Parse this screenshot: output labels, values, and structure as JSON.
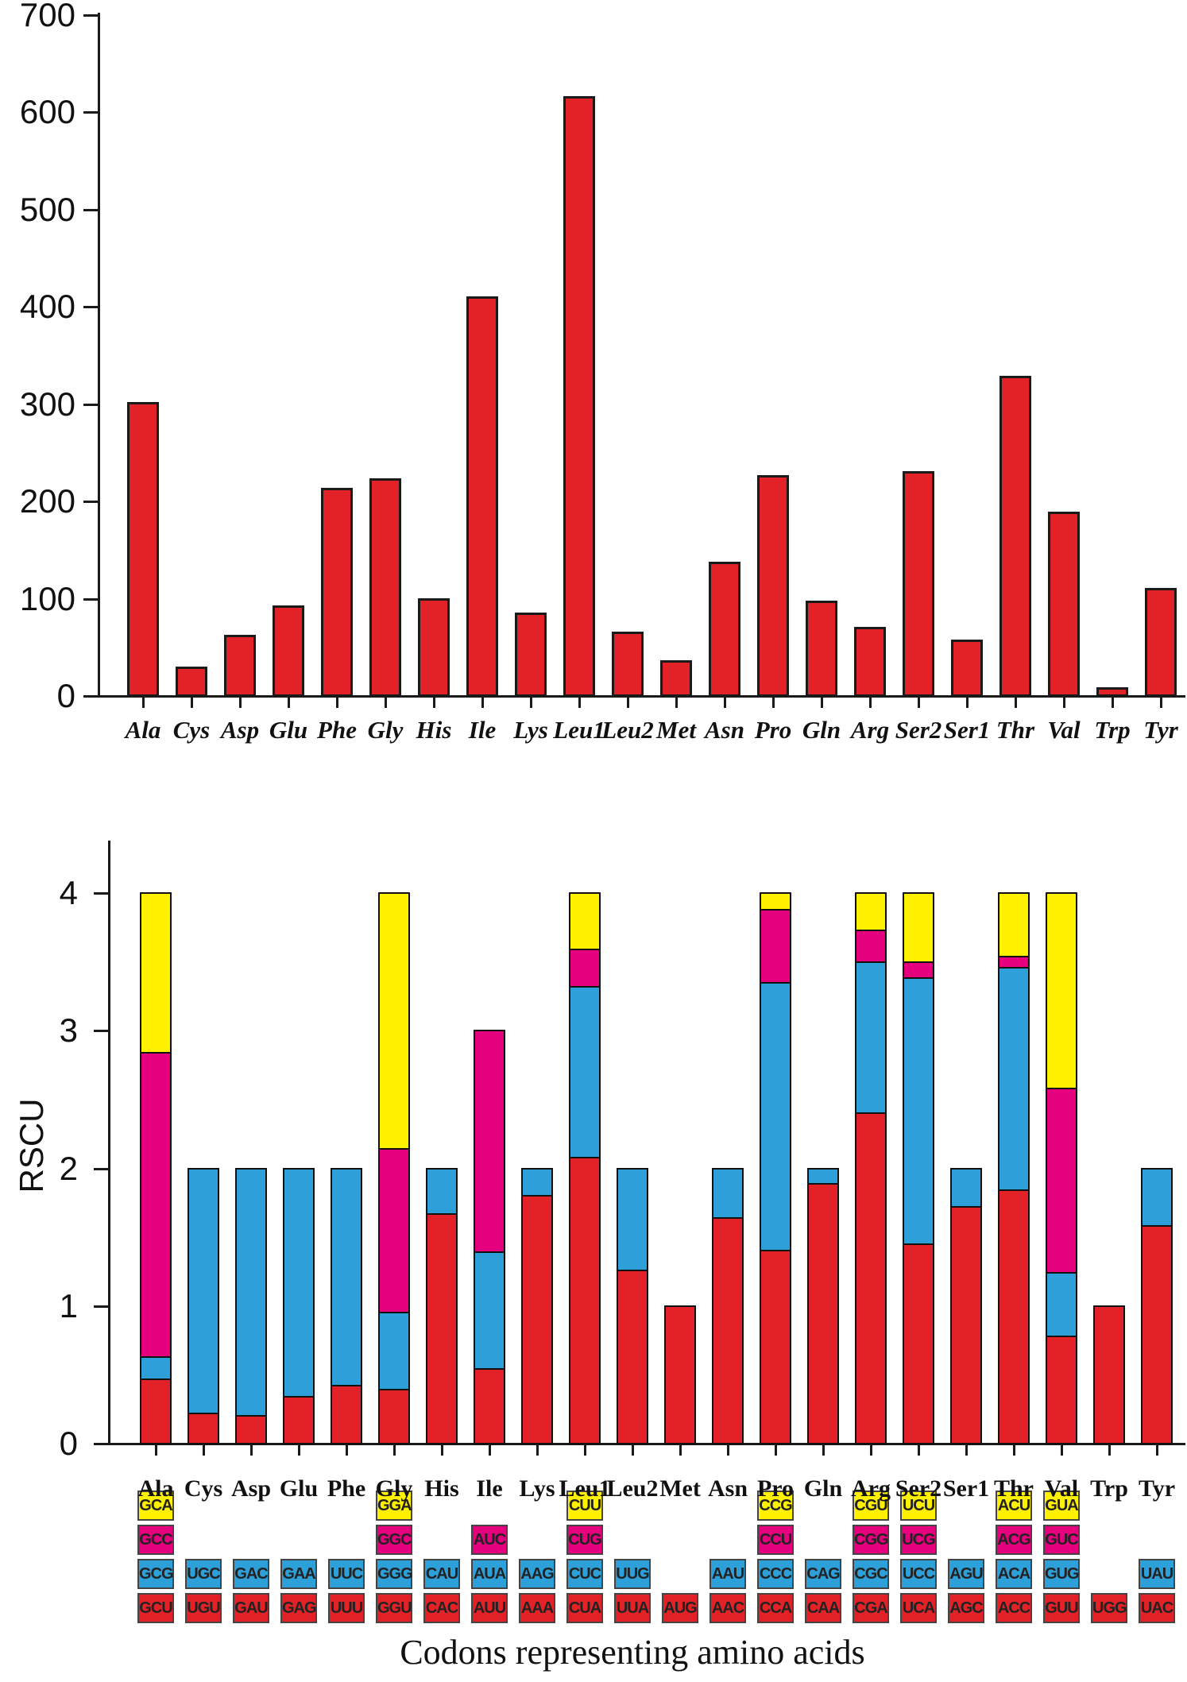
{
  "palette": {
    "red": "#e32227",
    "blue": "#2d9fd9",
    "magenta": "#e5007e",
    "yellow": "#fff100",
    "outline": "#1a1a1a"
  },
  "chart_data": [
    {
      "type": "bar",
      "title": "",
      "xlabel": "",
      "ylabel": "",
      "ylim": [
        0,
        700
      ],
      "y_ticks": [
        "0",
        "100",
        "200",
        "300",
        "400",
        "500",
        "600",
        "700"
      ],
      "grid": false,
      "legend": "none",
      "bar_color": "red",
      "categories": [
        "Ala",
        "Cys",
        "Asp",
        "Glu",
        "Phe",
        "Gly",
        "His",
        "Ile",
        "Lys",
        "Leu1",
        "Leu2",
        "Met",
        "Asn",
        "Pro",
        "Gln",
        "Arg",
        "Ser2",
        "Ser1",
        "Thr",
        "Val",
        "Trp",
        "Tyr"
      ],
      "values": [
        301,
        29,
        62,
        92,
        213,
        223,
        100,
        410,
        85,
        616,
        65,
        36,
        137,
        226,
        97,
        70,
        230,
        57,
        328,
        189,
        8,
        110
      ]
    },
    {
      "type": "stacked-bar",
      "title": "",
      "xlabel": "Codons representing amino acids",
      "ylabel": "RSCU",
      "ylim": [
        0,
        4
      ],
      "y_ticks": [
        "0",
        "1",
        "2",
        "3",
        "4"
      ],
      "grid": false,
      "legend": "codon-grid-below-axis",
      "stack_order_bottom_to_top": [
        "red",
        "blue",
        "magenta",
        "yellow"
      ],
      "codon_grid_rows_top_to_bottom": [
        "yellow",
        "magenta",
        "blue",
        "red"
      ],
      "categories": [
        "Ala",
        "Cys",
        "Asp",
        "Glu",
        "Phe",
        "Gly",
        "His",
        "Ile",
        "Lys",
        "Leu1",
        "Leu2",
        "Met",
        "Asn",
        "Pro",
        "Gln",
        "Arg",
        "Ser2",
        "Ser1",
        "Thr",
        "Val",
        "Trp",
        "Tyr"
      ],
      "bars": [
        {
          "name": "Ala",
          "segments": [
            {
              "codon": "GCU",
              "color": "red",
              "value": 0.47
            },
            {
              "codon": "GCG",
              "color": "blue",
              "value": 0.16
            },
            {
              "codon": "GCC",
              "color": "magenta",
              "value": 2.21
            },
            {
              "codon": "GCA",
              "color": "yellow",
              "value": 1.16
            }
          ]
        },
        {
          "name": "Cys",
          "segments": [
            {
              "codon": "UGU",
              "color": "red",
              "value": 0.22
            },
            {
              "codon": "UGC",
              "color": "blue",
              "value": 1.78
            }
          ]
        },
        {
          "name": "Asp",
          "segments": [
            {
              "codon": "GAU",
              "color": "red",
              "value": 0.2
            },
            {
              "codon": "GAC",
              "color": "blue",
              "value": 1.8
            }
          ]
        },
        {
          "name": "Glu",
          "segments": [
            {
              "codon": "GAG",
              "color": "red",
              "value": 0.34
            },
            {
              "codon": "GAA",
              "color": "blue",
              "value": 1.66
            }
          ]
        },
        {
          "name": "Phe",
          "segments": [
            {
              "codon": "UUU",
              "color": "red",
              "value": 0.42
            },
            {
              "codon": "UUC",
              "color": "blue",
              "value": 1.58
            }
          ]
        },
        {
          "name": "Gly",
          "segments": [
            {
              "codon": "GGU",
              "color": "red",
              "value": 0.39
            },
            {
              "codon": "GGG",
              "color": "blue",
              "value": 0.56
            },
            {
              "codon": "GGC",
              "color": "magenta",
              "value": 1.19
            },
            {
              "codon": "GGA",
              "color": "yellow",
              "value": 1.86
            }
          ]
        },
        {
          "name": "His",
          "segments": [
            {
              "codon": "CAC",
              "color": "red",
              "value": 1.67
            },
            {
              "codon": "CAU",
              "color": "blue",
              "value": 0.33
            }
          ]
        },
        {
          "name": "Ile",
          "segments": [
            {
              "codon": "AUU",
              "color": "red",
              "value": 0.54
            },
            {
              "codon": "AUA",
              "color": "blue",
              "value": 0.85
            },
            {
              "codon": "AUC",
              "color": "magenta",
              "value": 1.61
            }
          ]
        },
        {
          "name": "Lys",
          "segments": [
            {
              "codon": "AAA",
              "color": "red",
              "value": 1.8
            },
            {
              "codon": "AAG",
              "color": "blue",
              "value": 0.2
            }
          ]
        },
        {
          "name": "Leu1",
          "segments": [
            {
              "codon": "CUA",
              "color": "red",
              "value": 2.08
            },
            {
              "codon": "CUC",
              "color": "blue",
              "value": 1.24
            },
            {
              "codon": "CUG",
              "color": "magenta",
              "value": 0.27
            },
            {
              "codon": "CUU",
              "color": "yellow",
              "value": 0.41
            }
          ]
        },
        {
          "name": "Leu2",
          "segments": [
            {
              "codon": "UUA",
              "color": "red",
              "value": 1.26
            },
            {
              "codon": "UUG",
              "color": "blue",
              "value": 0.74
            }
          ]
        },
        {
          "name": "Met",
          "segments": [
            {
              "codon": "AUG",
              "color": "red",
              "value": 1.0
            }
          ]
        },
        {
          "name": "Asn",
          "segments": [
            {
              "codon": "AAC",
              "color": "red",
              "value": 1.64
            },
            {
              "codon": "AAU",
              "color": "blue",
              "value": 0.36
            }
          ]
        },
        {
          "name": "Pro",
          "segments": [
            {
              "codon": "CCA",
              "color": "red",
              "value": 1.4
            },
            {
              "codon": "CCC",
              "color": "blue",
              "value": 1.95
            },
            {
              "codon": "CCU",
              "color": "magenta",
              "value": 0.53
            },
            {
              "codon": "CCG",
              "color": "yellow",
              "value": 0.12
            }
          ]
        },
        {
          "name": "Gln",
          "segments": [
            {
              "codon": "CAA",
              "color": "red",
              "value": 1.89
            },
            {
              "codon": "CAG",
              "color": "blue",
              "value": 0.11
            }
          ]
        },
        {
          "name": "Arg",
          "segments": [
            {
              "codon": "CGA",
              "color": "red",
              "value": 2.4
            },
            {
              "codon": "CGC",
              "color": "blue",
              "value": 1.1
            },
            {
              "codon": "CGG",
              "color": "magenta",
              "value": 0.23
            },
            {
              "codon": "CGU",
              "color": "yellow",
              "value": 0.27
            }
          ]
        },
        {
          "name": "Ser2",
          "segments": [
            {
              "codon": "UCA",
              "color": "red",
              "value": 1.45
            },
            {
              "codon": "UCC",
              "color": "blue",
              "value": 1.93
            },
            {
              "codon": "UCG",
              "color": "magenta",
              "value": 0.12
            },
            {
              "codon": "UCU",
              "color": "yellow",
              "value": 0.5
            }
          ]
        },
        {
          "name": "Ser1",
          "segments": [
            {
              "codon": "AGC",
              "color": "red",
              "value": 1.72
            },
            {
              "codon": "AGU",
              "color": "blue",
              "value": 0.28
            }
          ]
        },
        {
          "name": "Thr",
          "segments": [
            {
              "codon": "ACC",
              "color": "red",
              "value": 1.84
            },
            {
              "codon": "ACA",
              "color": "blue",
              "value": 1.62
            },
            {
              "codon": "ACG",
              "color": "magenta",
              "value": 0.08
            },
            {
              "codon": "ACU",
              "color": "yellow",
              "value": 0.46
            }
          ]
        },
        {
          "name": "Val",
          "segments": [
            {
              "codon": "GUU",
              "color": "red",
              "value": 0.78
            },
            {
              "codon": "GUG",
              "color": "blue",
              "value": 0.46
            },
            {
              "codon": "GUC",
              "color": "magenta",
              "value": 1.34
            },
            {
              "codon": "GUA",
              "color": "yellow",
              "value": 1.42
            }
          ]
        },
        {
          "name": "Trp",
          "segments": [
            {
              "codon": "UGG",
              "color": "red",
              "value": 1.0
            }
          ]
        },
        {
          "name": "Tyr",
          "segments": [
            {
              "codon": "UAC",
              "color": "red",
              "value": 1.58
            },
            {
              "codon": "UAU",
              "color": "blue",
              "value": 0.42
            }
          ]
        }
      ]
    }
  ]
}
